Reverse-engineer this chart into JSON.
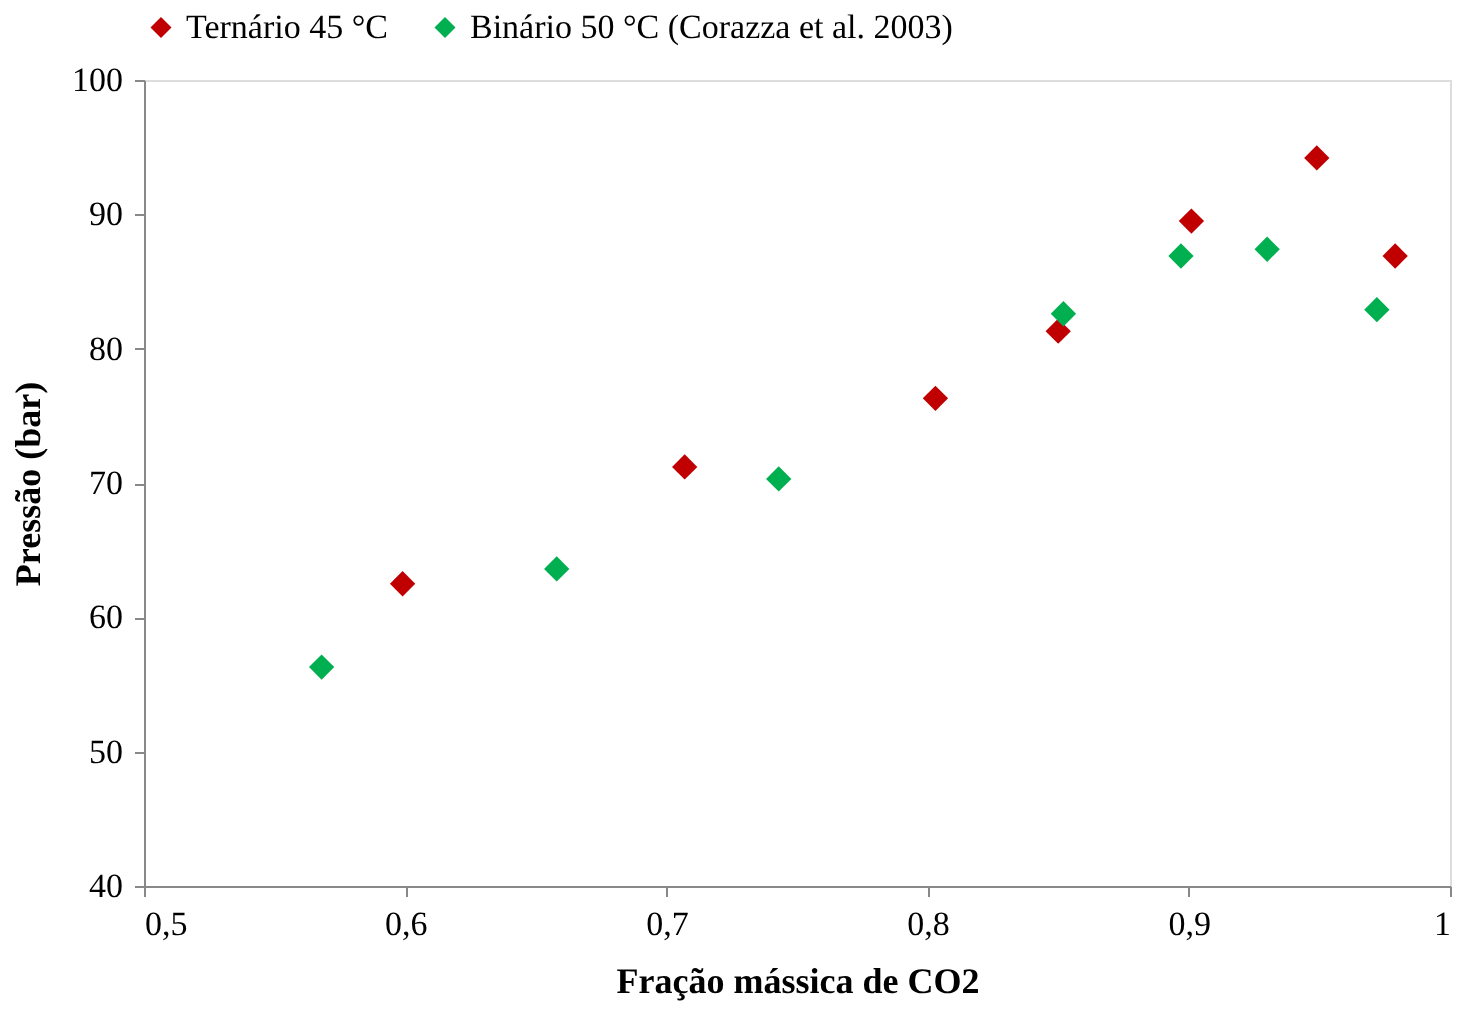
{
  "chart_data": {
    "type": "scatter",
    "xlabel": "Fração mássica de CO2",
    "ylabel": "Pressão (bar)",
    "xlim": [
      0.5,
      1
    ],
    "xticks": [
      {
        "value": 0.5,
        "label": "0,5"
      },
      {
        "value": 0.6,
        "label": "0,6"
      },
      {
        "value": 0.7,
        "label": "0,7"
      },
      {
        "value": 0.8,
        "label": "0,8"
      },
      {
        "value": 0.9,
        "label": "0,9"
      },
      1
    ],
    "ylim": [
      40,
      100
    ],
    "yticks": [
      40,
      50,
      60,
      70,
      80,
      90,
      100
    ],
    "grid": false,
    "legend": "top",
    "marker": "diamond",
    "series": [
      {
        "name": "Ternário 45 °C",
        "color": "#c00000",
        "x": [
          0.599,
          0.707,
          0.803,
          0.85,
          0.901,
          0.949,
          0.979
        ],
        "values": [
          62.5,
          71.2,
          76.3,
          81.3,
          89.5,
          94.2,
          86.9
        ]
      },
      {
        "name": "Binário 50 °C (Corazza et al. 2003)",
        "color": "#00b050",
        "x": [
          0.568,
          0.658,
          0.743,
          0.852,
          0.897,
          0.93,
          0.972
        ],
        "values": [
          56.3,
          63.6,
          70.3,
          82.6,
          86.9,
          87.4,
          82.9
        ]
      }
    ]
  }
}
